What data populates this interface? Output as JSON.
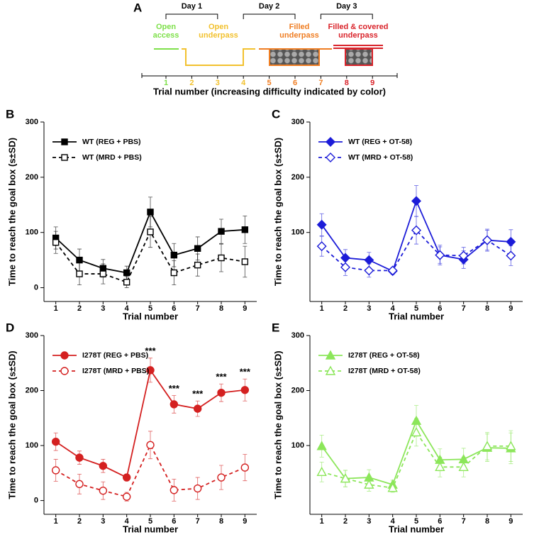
{
  "schematic": {
    "panel": "A",
    "days": [
      "Day 1",
      "Day 2",
      "Day 3"
    ],
    "stages": [
      {
        "label": [
          "Open",
          "access"
        ],
        "color": "#7ee04a"
      },
      {
        "label": [
          "Open",
          "underpass"
        ],
        "color": "#f2c12e"
      },
      {
        "label": [
          "Filled",
          "underpass"
        ],
        "color": "#ef7d22"
      },
      {
        "label": [
          "Filled & covered",
          "underpass"
        ],
        "color": "#d9232a"
      }
    ],
    "trials": [
      1,
      2,
      3,
      4,
      5,
      6,
      7,
      8,
      9
    ],
    "trial_colors": [
      "#7ee04a",
      "#f2c12e",
      "#f2c12e",
      "#f2c12e",
      "#ef7d22",
      "#ef7d22",
      "#ef7d22",
      "#d9232a",
      "#d9232a"
    ],
    "xlabel": "Trial number (increasing difficulty indicated by color)"
  },
  "chart_data": [
    {
      "type": "line",
      "panel": "B",
      "xlabel": "Trial number",
      "ylabel": "Time to reach the goal box (s±SD)",
      "x": [
        1,
        2,
        3,
        4,
        5,
        6,
        7,
        8,
        9
      ],
      "xlim": [
        0.5,
        9.5
      ],
      "xticks": [
        1,
        2,
        3,
        4,
        5,
        6,
        7,
        8,
        9
      ],
      "ylim": [
        -25,
        300
      ],
      "yticks": [
        0,
        100,
        200,
        300
      ],
      "legend": "upper left",
      "series": [
        {
          "name": "WT (REG + PBS)",
          "color": "#000000",
          "marker": "square",
          "filled": true,
          "linestyle": "solid",
          "values": [
            90,
            50,
            35,
            27,
            137,
            59,
            71,
            102,
            105
          ],
          "errors": [
            20,
            20,
            16,
            12,
            27,
            21,
            21,
            22,
            25
          ]
        },
        {
          "name": "WT (MRD + PBS)",
          "color": "#000000",
          "marker": "square",
          "filled": false,
          "linestyle": "dashed",
          "values": [
            82,
            25,
            25,
            10,
            101,
            27,
            41,
            54,
            47
          ],
          "errors": [
            20,
            20,
            18,
            10,
            28,
            22,
            20,
            25,
            28
          ]
        }
      ]
    },
    {
      "type": "line",
      "panel": "C",
      "xlabel": "Trial number",
      "ylabel": "Time to reach the goal box (s±SD)",
      "x": [
        1,
        2,
        3,
        4,
        5,
        6,
        7,
        8,
        9
      ],
      "xlim": [
        0.5,
        9.5
      ],
      "xticks": [
        1,
        2,
        3,
        4,
        5,
        6,
        7,
        8,
        9
      ],
      "ylim": [
        -25,
        300
      ],
      "yticks": [
        100,
        200,
        300
      ],
      "legend": "upper left",
      "series": [
        {
          "name": "WT (REG + OT-58)",
          "color": "#1c1cd8",
          "marker": "diamond",
          "filled": true,
          "linestyle": "solid",
          "values": [
            114,
            54,
            50,
            30,
            157,
            59,
            51,
            86,
            83
          ],
          "errors": [
            20,
            15,
            14,
            6,
            28,
            18,
            16,
            20,
            22
          ]
        },
        {
          "name": "WT (MRD + OT-58)",
          "color": "#1c1cd8",
          "marker": "diamond",
          "filled": false,
          "linestyle": "dashed",
          "values": [
            75,
            37,
            31,
            31,
            104,
            59,
            58,
            86,
            58
          ],
          "errors": [
            18,
            15,
            12,
            5,
            25,
            15,
            15,
            18,
            18
          ]
        }
      ]
    },
    {
      "type": "line",
      "panel": "D",
      "xlabel": "Trial number",
      "ylabel": "Time to reach the goal box (s±SD)",
      "x": [
        1,
        2,
        3,
        4,
        5,
        6,
        7,
        8,
        9
      ],
      "xlim": [
        0.5,
        9.5
      ],
      "xticks": [
        1,
        2,
        3,
        4,
        5,
        6,
        7,
        8,
        9
      ],
      "ylim": [
        -25,
        300
      ],
      "yticks": [
        0,
        100,
        200,
        300
      ],
      "legend": "upper left",
      "series": [
        {
          "name": "I278T (REG + PBS)",
          "color": "#d42020",
          "marker": "circle",
          "filled": true,
          "linestyle": "solid",
          "values": [
            107,
            78,
            63,
            42,
            237,
            175,
            167,
            196,
            201
          ],
          "errors": [
            16,
            12,
            12,
            6,
            22,
            16,
            14,
            16,
            20
          ]
        },
        {
          "name": "I278T (MRD + PBS)",
          "color": "#d42020",
          "marker": "circle",
          "filled": false,
          "linestyle": "dashed",
          "values": [
            55,
            30,
            18,
            7,
            101,
            19,
            22,
            42,
            60
          ],
          "errors": [
            20,
            18,
            16,
            8,
            25,
            20,
            20,
            22,
            24
          ]
        }
      ],
      "annotations": [
        {
          "x": 5,
          "text": "***"
        },
        {
          "x": 6,
          "text": "***"
        },
        {
          "x": 7,
          "text": "***"
        },
        {
          "x": 8,
          "text": "***"
        },
        {
          "x": 9,
          "text": "***"
        }
      ]
    },
    {
      "type": "line",
      "panel": "E",
      "xlabel": "Trial number",
      "ylabel": "Time to reach the goal box (s±SD)",
      "x": [
        1,
        2,
        3,
        4,
        5,
        6,
        7,
        8,
        9
      ],
      "xlim": [
        0.5,
        9.5
      ],
      "xticks": [
        1,
        2,
        3,
        4,
        5,
        6,
        7,
        8,
        9
      ],
      "ylim": [
        -25,
        300
      ],
      "yticks": [
        100,
        200,
        300
      ],
      "legend": "upper left",
      "series": [
        {
          "name": "I278T (REG + OT-58)",
          "color": "#8ce65a",
          "marker": "triangle",
          "filled": true,
          "linestyle": "solid",
          "values": [
            99,
            40,
            42,
            29,
            145,
            74,
            75,
            96,
            95
          ],
          "errors": [
            20,
            15,
            14,
            8,
            28,
            20,
            20,
            25,
            28
          ]
        },
        {
          "name": "I278T (MRD + OT-58)",
          "color": "#8ce65a",
          "marker": "triangle",
          "filled": false,
          "linestyle": "dashed",
          "values": [
            52,
            40,
            29,
            23,
            124,
            61,
            61,
            99,
            99
          ],
          "errors": [
            18,
            15,
            12,
            8,
            25,
            18,
            18,
            25,
            28
          ]
        }
      ]
    }
  ]
}
